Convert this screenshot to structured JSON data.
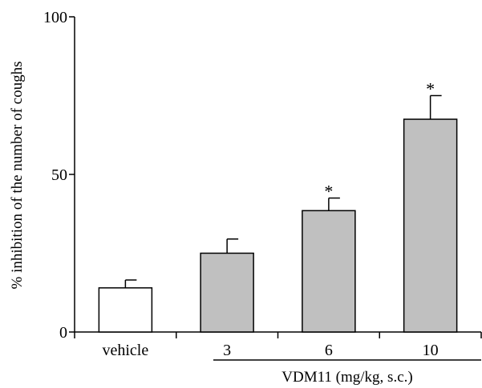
{
  "chart_data": {
    "type": "bar",
    "categories": [
      "vehicle",
      "3",
      "6",
      "10"
    ],
    "values": [
      14,
      25,
      38.5,
      67.5
    ],
    "errors": [
      2.5,
      4.5,
      4,
      7.5
    ],
    "significance": [
      "",
      "",
      "*",
      "*"
    ],
    "fill_colors": [
      "#ffffff",
      "#c0c0c0",
      "#c0c0c0",
      "#c0c0c0"
    ],
    "ylabel": "% inhibition of the number of coughs",
    "group_label": "VDM11 (mg/kg, s.c.)",
    "ylim": [
      0,
      100
    ],
    "yticks": [
      0,
      50,
      100
    ],
    "grid": false,
    "legend": "none"
  }
}
